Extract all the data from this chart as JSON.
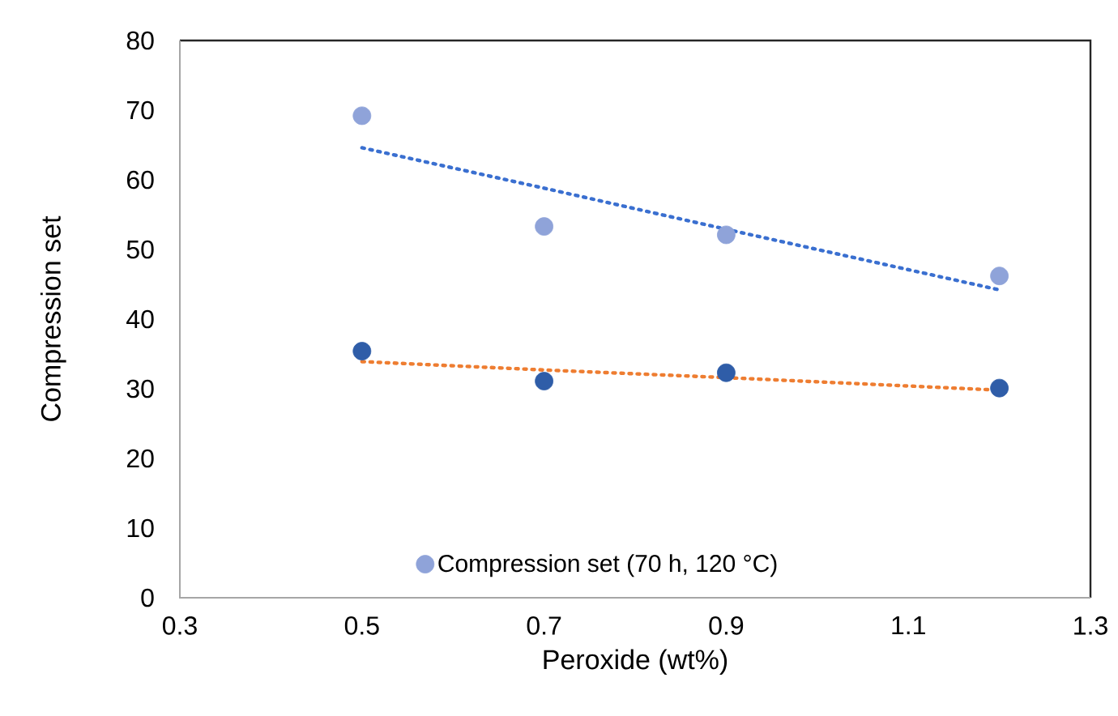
{
  "chart_data": {
    "type": "scatter",
    "xlabel": "Peroxide (wt%)",
    "ylabel": "Compression set",
    "xlim": [
      0.3,
      1.3
    ],
    "xticks": [
      0.3,
      0.5,
      0.7,
      0.9,
      1.1,
      1.3
    ],
    "ylim": [
      0,
      80
    ],
    "yticks": [
      0,
      10,
      20,
      30,
      40,
      50,
      60,
      70,
      80
    ],
    "x": [
      0.5,
      0.7,
      0.9,
      1.2
    ],
    "grid": false,
    "legend": "bottom",
    "series": [
      {
        "name": "Compression set (70 h, 120 °C)",
        "marker": "circle",
        "color": "#8fa3d9",
        "values": [
          69.2,
          53.3,
          52.1,
          46.2
        ]
      },
      {
        "marker": "circle",
        "color": "#2f5da8",
        "values": [
          35.4,
          31.1,
          32.3,
          30.1
        ]
      },
      {
        "type": "line",
        "marker": "none",
        "line_style": "dotted",
        "color": "#3a6fd0",
        "values": [
          64.6,
          58.8,
          52.9,
          44.2
        ]
      },
      {
        "type": "line",
        "marker": "none",
        "line_style": "dotted",
        "color": "#ee7d31",
        "values": [
          33.9,
          32.7,
          31.6,
          29.8
        ]
      }
    ]
  }
}
